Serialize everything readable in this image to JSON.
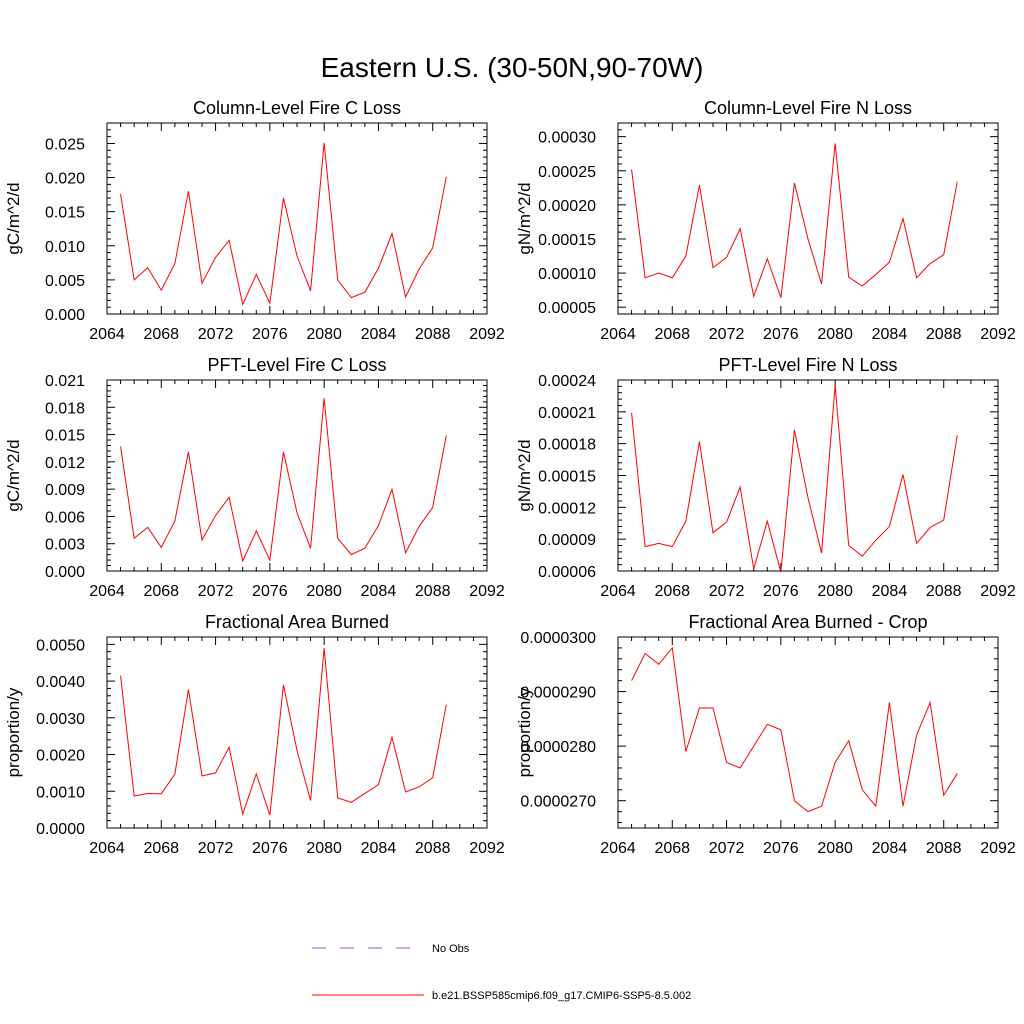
{
  "figure": {
    "title": "Eastern U.S. (30-50N,90-70W)"
  },
  "legend": {
    "items": [
      {
        "label": "No Obs",
        "color": "#6b6bd6",
        "style": "dashed"
      },
      {
        "label": "b.e21.BSSP585cmip6.f09_g17.CMIP6-SSP5-8.5.002",
        "color": "#ff0000",
        "style": "solid"
      }
    ]
  },
  "chart_data": [
    {
      "type": "line",
      "title": "Column-Level Fire C Loss",
      "ylabel": "gC/m^2/d",
      "xlim": [
        2064,
        2092
      ],
      "ylim": [
        0,
        0.028
      ],
      "xticks": [
        "2064",
        "2068",
        "2072",
        "2076",
        "2080",
        "2084",
        "2088",
        "2092"
      ],
      "yticks": [
        0,
        0.005,
        0.01,
        0.015,
        0.02,
        0.025
      ],
      "ytick_labels": [
        "0.000",
        "0.005",
        "0.010",
        "0.015",
        "0.020",
        "0.025"
      ],
      "x": [
        2065,
        2066,
        2067,
        2068,
        2069,
        2070,
        2071,
        2072,
        2073,
        2074,
        2075,
        2076,
        2077,
        2078,
        2079,
        2080,
        2081,
        2082,
        2083,
        2084,
        2085,
        2086,
        2087,
        2088,
        2089
      ],
      "series": [
        {
          "color": "#ff0000",
          "values": [
            0.0176,
            0.005,
            0.0068,
            0.0035,
            0.0074,
            0.018,
            0.0045,
            0.0083,
            0.0108,
            0.0014,
            0.0058,
            0.0016,
            0.017,
            0.0085,
            0.0034,
            0.0251,
            0.005,
            0.0024,
            0.0032,
            0.0067,
            0.0118,
            0.0025,
            0.0066,
            0.0097,
            0.0201
          ]
        }
      ]
    },
    {
      "type": "line",
      "title": "Column-Level Fire N Loss",
      "ylabel": "gN/m^2/d",
      "xlim": [
        2064,
        2092
      ],
      "ylim": [
        4e-05,
        0.00032
      ],
      "xticks": [
        "2064",
        "2068",
        "2072",
        "2076",
        "2080",
        "2084",
        "2088",
        "2092"
      ],
      "yticks": [
        5e-05,
        0.0001,
        0.00015,
        0.0002,
        0.00025,
        0.0003
      ],
      "ytick_labels": [
        "0.00005",
        "0.00010",
        "0.00015",
        "0.00020",
        "0.00025",
        "0.00030"
      ],
      "x": [
        2065,
        2066,
        2067,
        2068,
        2069,
        2070,
        2071,
        2072,
        2073,
        2074,
        2075,
        2076,
        2077,
        2078,
        2079,
        2080,
        2081,
        2082,
        2083,
        2084,
        2085,
        2086,
        2087,
        2088,
        2089
      ],
      "series": [
        {
          "color": "#ff0000",
          "values": [
            0.000252,
            9.3e-05,
            0.0001,
            9.3e-05,
            0.000125,
            0.000229,
            0.000108,
            0.000123,
            0.000165,
            6.6e-05,
            0.000121,
            6.4e-05,
            0.000232,
            0.00015,
            8.4e-05,
            0.00029,
            9.4e-05,
            8.1e-05,
            9.8e-05,
            0.000116,
            0.00018,
            9.3e-05,
            0.000114,
            0.000127,
            0.000234
          ]
        }
      ]
    },
    {
      "type": "line",
      "title": "PFT-Level Fire C Loss",
      "ylabel": "gC/m^2/d",
      "xlim": [
        2064,
        2092
      ],
      "ylim": [
        0,
        0.021
      ],
      "xticks": [
        "2064",
        "2068",
        "2072",
        "2076",
        "2080",
        "2084",
        "2088",
        "2092"
      ],
      "yticks": [
        0,
        0.003,
        0.006,
        0.009,
        0.012,
        0.015,
        0.018,
        0.021
      ],
      "ytick_labels": [
        "0.000",
        "0.003",
        "0.006",
        "0.009",
        "0.012",
        "0.015",
        "0.018",
        "0.021"
      ],
      "x": [
        2065,
        2066,
        2067,
        2068,
        2069,
        2070,
        2071,
        2072,
        2073,
        2074,
        2075,
        2076,
        2077,
        2078,
        2079,
        2080,
        2081,
        2082,
        2083,
        2084,
        2085,
        2086,
        2087,
        2088,
        2089
      ],
      "series": [
        {
          "color": "#ff0000",
          "values": [
            0.0137,
            0.0036,
            0.0048,
            0.0026,
            0.0055,
            0.0131,
            0.0034,
            0.0061,
            0.0081,
            0.0011,
            0.0044,
            0.0012,
            0.0131,
            0.0064,
            0.0025,
            0.019,
            0.0036,
            0.0018,
            0.0025,
            0.005,
            0.009,
            0.002,
            0.0049,
            0.007,
            0.0149
          ]
        }
      ]
    },
    {
      "type": "line",
      "title": "PFT-Level Fire N Loss",
      "ylabel": "gN/m^2/d",
      "xlim": [
        2064,
        2092
      ],
      "ylim": [
        6e-05,
        0.00024
      ],
      "xticks": [
        "2064",
        "2068",
        "2072",
        "2076",
        "2080",
        "2084",
        "2088",
        "2092"
      ],
      "yticks": [
        6e-05,
        9e-05,
        0.00012,
        0.00015,
        0.00018,
        0.00021,
        0.00024
      ],
      "ytick_labels": [
        "0.00006",
        "0.00009",
        "0.00012",
        "0.00015",
        "0.00018",
        "0.00021",
        "0.00024"
      ],
      "x": [
        2065,
        2066,
        2067,
        2068,
        2069,
        2070,
        2071,
        2072,
        2073,
        2074,
        2075,
        2076,
        2077,
        2078,
        2079,
        2080,
        2081,
        2082,
        2083,
        2084,
        2085,
        2086,
        2087,
        2088,
        2089
      ],
      "series": [
        {
          "color": "#ff0000",
          "values": [
            0.000209,
            8.3e-05,
            8.6e-05,
            8.3e-05,
            0.000107,
            0.000182,
            9.6e-05,
            0.000106,
            0.000139,
            6.2e-05,
            0.000107,
            5.9e-05,
            0.000193,
            0.000129,
            7.7e-05,
            0.000235,
            8.4e-05,
            7.4e-05,
            8.9e-05,
            0.000102,
            0.000151,
            8.6e-05,
            0.000101,
            0.000108,
            0.000188
          ]
        }
      ]
    },
    {
      "type": "line",
      "title": "Fractional Area Burned",
      "ylabel": "proportion/y",
      "xlim": [
        2064,
        2092
      ],
      "ylim": [
        0,
        0.0052
      ],
      "xticks": [
        "2064",
        "2068",
        "2072",
        "2076",
        "2080",
        "2084",
        "2088",
        "2092"
      ],
      "yticks": [
        0,
        0.001,
        0.002,
        0.003,
        0.004,
        0.005
      ],
      "ytick_labels": [
        "0.0000",
        "0.0010",
        "0.0020",
        "0.0030",
        "0.0040",
        "0.0050"
      ],
      "x": [
        2065,
        2066,
        2067,
        2068,
        2069,
        2070,
        2071,
        2072,
        2073,
        2074,
        2075,
        2076,
        2077,
        2078,
        2079,
        2080,
        2081,
        2082,
        2083,
        2084,
        2085,
        2086,
        2087,
        2088,
        2089
      ],
      "series": [
        {
          "color": "#ff0000",
          "values": [
            0.00415,
            0.00087,
            0.00094,
            0.00093,
            0.00147,
            0.00377,
            0.00142,
            0.0015,
            0.0022,
            0.00038,
            0.00147,
            0.00035,
            0.0039,
            0.00211,
            0.00075,
            0.0049,
            0.00082,
            0.0007,
            0.00094,
            0.00118,
            0.00247,
            0.00098,
            0.00112,
            0.00137,
            0.00336
          ]
        }
      ]
    },
    {
      "type": "line",
      "title": "Fractional Area Burned - Crop",
      "ylabel": "proportion/y",
      "xlim": [
        2064,
        2092
      ],
      "ylim": [
        2.65e-05,
        3e-05
      ],
      "xticks": [
        "2064",
        "2068",
        "2072",
        "2076",
        "2080",
        "2084",
        "2088",
        "2092"
      ],
      "yticks": [
        2.7e-05,
        2.8e-05,
        2.9e-05,
        3e-05
      ],
      "ytick_labels": [
        "0.0000270",
        "0.0000280",
        "0.0000290",
        "0.0000300"
      ],
      "x": [
        2065,
        2066,
        2067,
        2068,
        2069,
        2070,
        2071,
        2072,
        2073,
        2074,
        2075,
        2076,
        2077,
        2078,
        2079,
        2080,
        2081,
        2082,
        2083,
        2084,
        2085,
        2086,
        2087,
        2088,
        2089
      ],
      "series": [
        {
          "color": "#ff0000",
          "values": [
            2.92e-05,
            2.97e-05,
            2.95e-05,
            2.98e-05,
            2.79e-05,
            2.87e-05,
            2.87e-05,
            2.77e-05,
            2.76e-05,
            2.8e-05,
            2.84e-05,
            2.83e-05,
            2.7e-05,
            2.68e-05,
            2.69e-05,
            2.77e-05,
            2.81e-05,
            2.72e-05,
            2.69e-05,
            2.88e-05,
            2.69e-05,
            2.82e-05,
            2.88e-05,
            2.71e-05,
            2.75e-05
          ]
        }
      ]
    }
  ]
}
